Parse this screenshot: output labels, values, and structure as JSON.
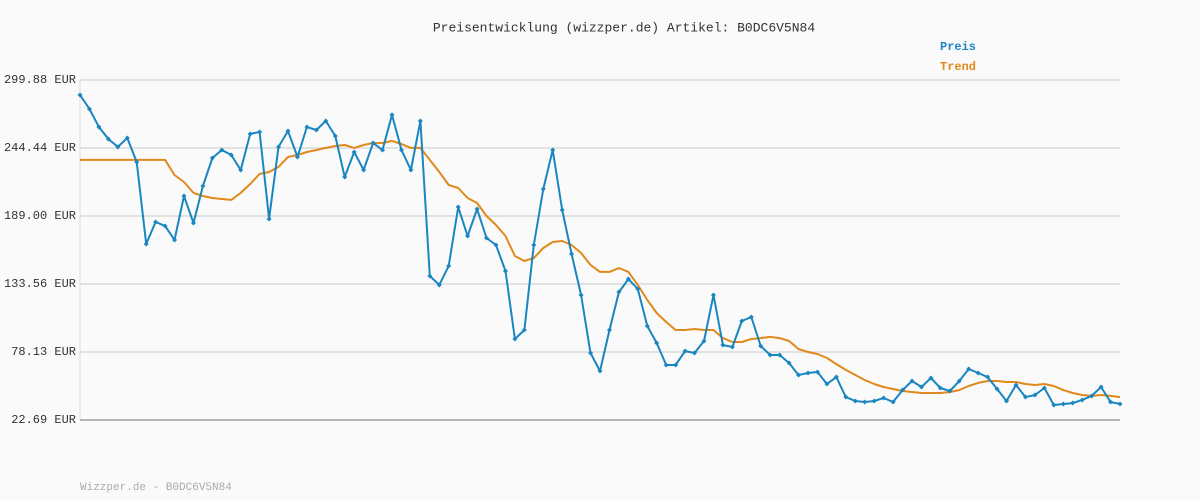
{
  "chart_data": {
    "type": "line",
    "title": "Preisentwicklung (wizzper.de) Artikel: B0DC6V5N84",
    "footer": "Wizzper.de - B0DC6V5N84",
    "categories": [
      null,
      null,
      null,
      null,
      null,
      null,
      null,
      null,
      null,
      null,
      null,
      null,
      null,
      null,
      null,
      null,
      null,
      null,
      null,
      null,
      null,
      null,
      null,
      null,
      null,
      null,
      null,
      null,
      null,
      null,
      null,
      null,
      null,
      null,
      null,
      null,
      null,
      null,
      null,
      null,
      null,
      null,
      null,
      null,
      null,
      null,
      null,
      null,
      null,
      null,
      null,
      null,
      null,
      null,
      null,
      null,
      null,
      null,
      null,
      null,
      null,
      null,
      null,
      null,
      null,
      null,
      null,
      null,
      null,
      null,
      null,
      null,
      null,
      null,
      null,
      null,
      null,
      null,
      null,
      null,
      null,
      null,
      null,
      null,
      null,
      null,
      null,
      null,
      null,
      null,
      null,
      null,
      null,
      null,
      null,
      null,
      null,
      null,
      null,
      null,
      null,
      null,
      null,
      null,
      null,
      null,
      null,
      null,
      null,
      null,
      null
    ],
    "series": [
      {
        "name": "Preis",
        "color": "#1a86c0",
        "markers": true,
        "values": [
          287.7,
          276.2,
          261.6,
          251.8,
          245.3,
          252.6,
          233.0,
          166.2,
          184.1,
          180.9,
          169.4,
          205.3,
          183.3,
          213.5,
          236.3,
          242.8,
          238.7,
          226.5,
          255.9,
          257.5,
          186.6,
          245.3,
          258.3,
          237.1,
          261.6,
          259.1,
          266.5,
          254.2,
          220.8,
          241.2,
          226.5,
          248.5,
          242.8,
          271.4,
          242.8,
          226.5,
          266.5,
          140.1,
          132.8,
          148.3,
          196.3,
          172.7,
          194.7,
          171.1,
          165.4,
          144.2,
          88.7,
          96.1,
          165.4,
          211.0,
          242.8,
          193.9,
          158.0,
          124.6,
          77.3,
          62.6,
          96.1,
          127.0,
          137.6,
          129.5,
          99.3,
          85.5,
          67.5,
          67.5,
          78.9,
          77.3,
          87.1,
          124.6,
          83.8,
          82.2,
          103.4,
          106.7,
          83.0,
          75.7,
          75.7,
          69.2,
          59.4,
          61.0,
          61.8,
          52.0,
          57.7,
          41.4,
          38.2,
          37.4,
          38.2,
          40.6,
          37.4,
          47.1,
          54.5,
          49.6,
          56.9,
          48.8,
          46.3,
          54.5,
          64.3,
          61.0,
          57.7,
          48.0,
          38.2,
          51.2,
          41.4,
          43.1,
          48.8,
          34.9,
          35.7,
          36.5,
          39.0,
          42.3,
          49.6,
          37.4,
          35.7
        ]
      },
      {
        "name": "Trend",
        "color": "#e0891c",
        "markers": false,
        "values": [
          234.7,
          234.7,
          234.7,
          234.7,
          234.7,
          234.7,
          234.7,
          234.7,
          234.7,
          234.7,
          222.4,
          216.7,
          207.8,
          205.3,
          203.7,
          202.9,
          202.1,
          207.8,
          215.1,
          223.3,
          224.9,
          229.0,
          237.1,
          238.7,
          241.2,
          242.8,
          244.5,
          246.1,
          246.9,
          244.5,
          246.9,
          248.5,
          248.5,
          250.2,
          247.7,
          244.5,
          244.5,
          234.7,
          224.9,
          214.3,
          211.8,
          203.7,
          199.6,
          189.0,
          181.7,
          172.7,
          156.4,
          152.3,
          154.8,
          162.9,
          167.8,
          168.6,
          165.4,
          158.8,
          149.1,
          143.4,
          143.4,
          146.6,
          143.4,
          132.8,
          120.5,
          109.9,
          102.6,
          96.1,
          96.1,
          96.9,
          96.1,
          96.1,
          89.5,
          86.3,
          86.3,
          88.7,
          89.5,
          90.4,
          89.5,
          87.1,
          80.6,
          78.1,
          76.5,
          73.2,
          68.3,
          63.5,
          59.4,
          55.3,
          52.0,
          49.6,
          48.0,
          46.3,
          45.5,
          44.7,
          44.7,
          44.7,
          45.5,
          47.1,
          50.4,
          52.9,
          54.5,
          54.5,
          53.7,
          53.7,
          52.0,
          51.2,
          52.0,
          50.4,
          47.1,
          44.7,
          43.1,
          42.3,
          43.1,
          42.3,
          41.4
        ]
      }
    ],
    "ylim": [
      22.69,
      299.88
    ],
    "yticks": [
      {
        "value": 22.69,
        "label": "22.69 EUR"
      },
      {
        "value": 78.13,
        "label": "78.13 EUR"
      },
      {
        "value": 133.56,
        "label": "133.56 EUR"
      },
      {
        "value": 189.0,
        "label": "189.00 EUR"
      },
      {
        "value": 244.44,
        "label": "244.44 EUR"
      },
      {
        "value": 299.88,
        "label": "299.88 EUR"
      }
    ],
    "grid": true,
    "legend": "top-right"
  }
}
